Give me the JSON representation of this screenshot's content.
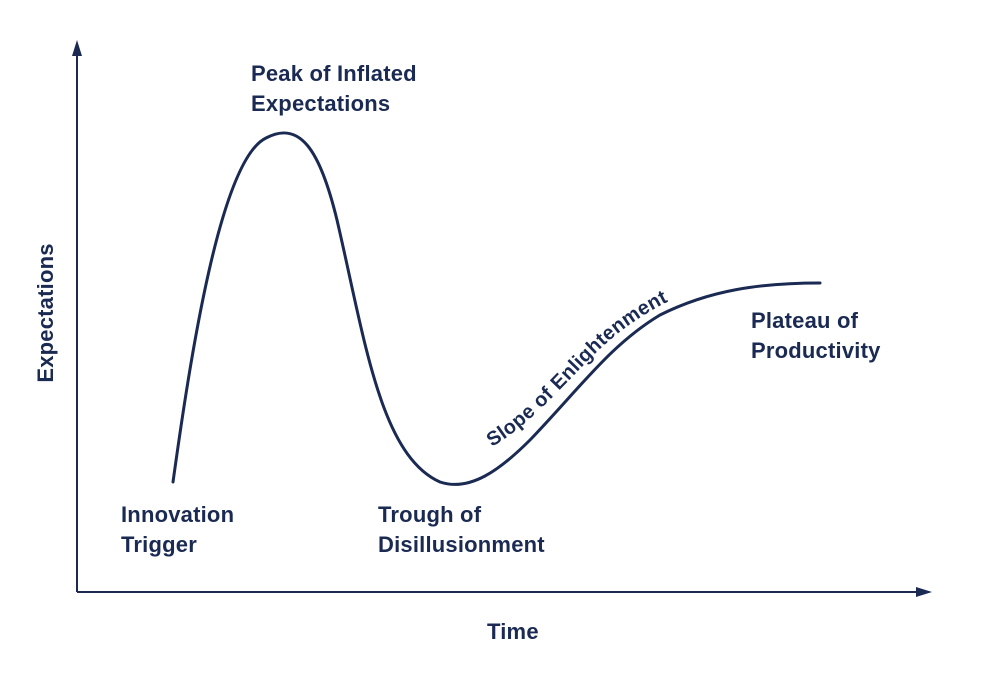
{
  "colors": {
    "ink": "#1a2a52",
    "background": "#ffffff"
  },
  "axes": {
    "x_label": "Time",
    "y_label": "Expectations"
  },
  "phases": {
    "innovation_trigger": [
      "Innovation",
      "Trigger"
    ],
    "peak": [
      "Peak of Inflated",
      "Expectations"
    ],
    "trough": [
      "Trough of",
      "Disillusionment"
    ],
    "slope": "Slope of Enlightenment",
    "plateau": [
      "Plateau of",
      "Productivity"
    ]
  }
}
